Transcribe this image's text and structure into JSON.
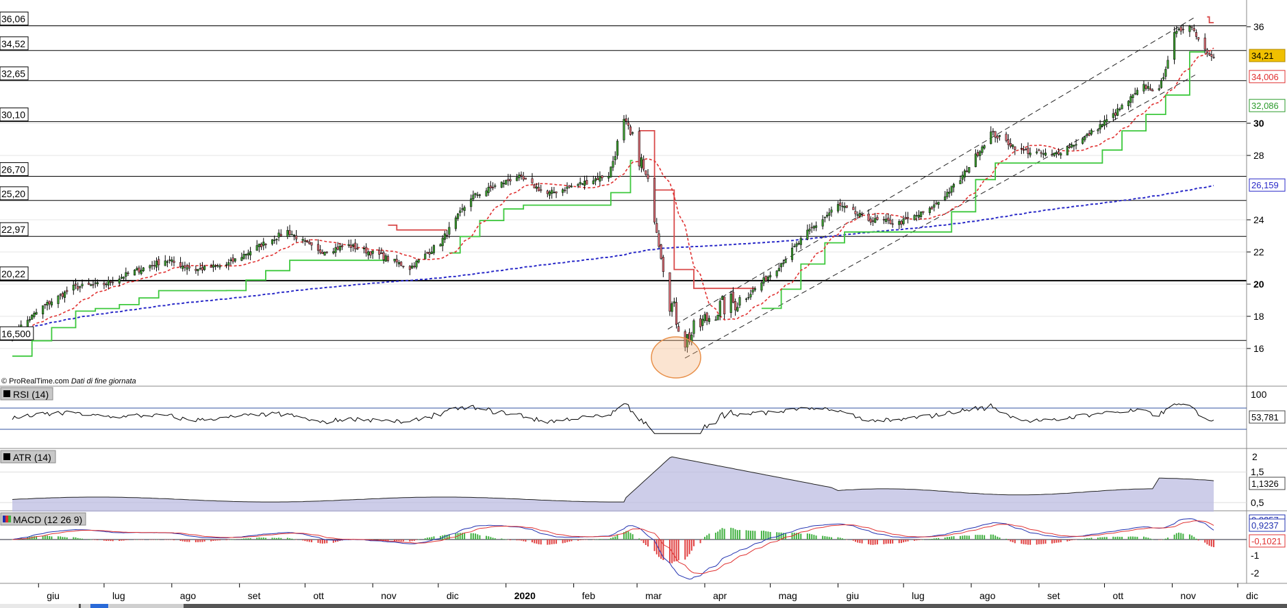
{
  "copyright": "© ProRealTime.com",
  "data_note": "Dati di fine giornata",
  "panels": {
    "rsi": {
      "label": "RSI (14)",
      "axis_top": "100",
      "value": "53,781"
    },
    "atr": {
      "label": "ATR (14)",
      "ticks": [
        "2",
        "1,5",
        "0,5"
      ],
      "value": "1,1326"
    },
    "macd": {
      "label": "MACD (12 26 9)",
      "ticks": [
        "-1",
        "-2"
      ],
      "value_macd": "0,9237",
      "value_hist": "-0,1021",
      "value_hidden": "0,0257"
    }
  },
  "price_axis_ticks": [
    "36",
    "30",
    "28",
    "24",
    "22",
    "20",
    "18",
    "16"
  ],
  "price_tags": {
    "last": "34,21",
    "fast_ma": "34,006",
    "trail": "32,086",
    "slow_ma": "26,159"
  },
  "months": [
    "giu",
    "lug",
    "ago",
    "set",
    "ott",
    "nov",
    "dic",
    "2020",
    "feb",
    "mar",
    "apr",
    "mag",
    "giu",
    "lug",
    "ago",
    "set",
    "ott",
    "nov",
    "dic"
  ],
  "colors": {
    "up": "#3a9a2e",
    "down": "#d86a72",
    "fast_ma": "#e03030",
    "trail_green": "#3cc83c",
    "trail_red": "#d84848",
    "slow_ma": "#2828c8",
    "last_tag": "#f0c000",
    "rsi_line": "#000000",
    "atr_fill": "#b8b8e0",
    "macd_line": "#2030b0",
    "signal_line": "#e03030",
    "hist_pos": "#40b040",
    "hist_neg": "#e04040",
    "circle": "#f4b27a"
  },
  "chart_data": {
    "type": "line",
    "title": "",
    "y_unit": "price",
    "horizontal_levels": [
      36.06,
      34.52,
      32.65,
      30.1,
      26.7,
      25.2,
      22.97,
      20.22,
      16.5
    ],
    "horizontal_level_labels": [
      "36,06",
      "34,52",
      "32,65",
      "30,10",
      "26,70",
      "25,20",
      "22,97",
      "20,22",
      "16,500"
    ],
    "ylim": [
      14.8,
      37.0
    ],
    "x": [
      "2019-05-20",
      "2019-06-03",
      "2019-06-17",
      "2019-07-01",
      "2019-07-15",
      "2019-07-29",
      "2019-08-12",
      "2019-08-26",
      "2019-09-09",
      "2019-09-23",
      "2019-10-07",
      "2019-10-21",
      "2019-11-04",
      "2019-11-18",
      "2019-12-02",
      "2019-12-16",
      "2020-01-06",
      "2020-01-20",
      "2020-02-03",
      "2020-02-17",
      "2020-02-24",
      "2020-03-02",
      "2020-03-09",
      "2020-03-16",
      "2020-03-23",
      "2020-04-06",
      "2020-04-20",
      "2020-05-04",
      "2020-05-18",
      "2020-06-01",
      "2020-06-15",
      "2020-06-29",
      "2020-07-13",
      "2020-07-27",
      "2020-08-10",
      "2020-08-24",
      "2020-09-07",
      "2020-09-21",
      "2020-10-05",
      "2020-10-19",
      "2020-10-26",
      "2020-11-02",
      "2020-11-09",
      "2020-11-16",
      "2020-11-20"
    ],
    "series": [
      {
        "values": [
          16.9,
          18.6,
          19.8,
          20.0,
          20.8,
          21.5,
          20.9,
          21.2,
          22.3,
          23.3,
          22.0,
          22.4,
          21.8,
          21.0,
          22.6,
          25.4,
          26.7,
          25.6,
          26.2,
          26.8,
          29.8,
          28.0,
          24.5,
          19.0,
          16.5,
          18.4,
          19.2,
          21.0,
          23.2,
          24.9,
          24.0,
          23.8,
          24.6,
          26.5,
          29.4,
          28.3,
          28.0,
          29.0,
          30.5,
          32.3,
          32.0,
          35.5,
          36.2,
          34.6,
          34.21
        ]
      }
    ],
    "x_month_labels": [
      "giu",
      "lug",
      "ago",
      "set",
      "ott",
      "nov",
      "dic",
      "2020",
      "feb",
      "mar",
      "apr",
      "mag",
      "giu",
      "lug",
      "ago",
      "set",
      "ott",
      "nov",
      "dic"
    ],
    "rsi_last": 53.781,
    "atr_last": 1.1326,
    "macd_last": 0.9237,
    "macd_hist_last": -0.1021
  }
}
